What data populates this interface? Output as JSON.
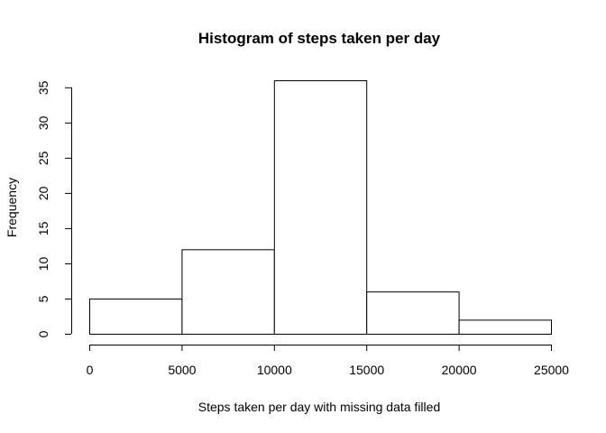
{
  "chart_data": {
    "type": "bar",
    "title": "Histogram of steps taken per day",
    "xlabel": "Steps taken per day with missing data filled",
    "ylabel": "Frequency",
    "bins": [
      {
        "start": 0,
        "end": 5000,
        "count": 5
      },
      {
        "start": 5000,
        "end": 10000,
        "count": 12
      },
      {
        "start": 10000,
        "end": 15000,
        "count": 36
      },
      {
        "start": 15000,
        "end": 20000,
        "count": 6
      },
      {
        "start": 20000,
        "end": 25000,
        "count": 2
      }
    ],
    "xlim": [
      0,
      25000
    ],
    "ylim": [
      0,
      36
    ],
    "xticks": [
      0,
      5000,
      10000,
      15000,
      20000,
      25000
    ],
    "yticks": [
      0,
      5,
      10,
      15,
      20,
      25,
      30,
      35
    ],
    "grid": false,
    "colors": {
      "bar_fill": "#ffffff",
      "bar_stroke": "#000000"
    }
  }
}
